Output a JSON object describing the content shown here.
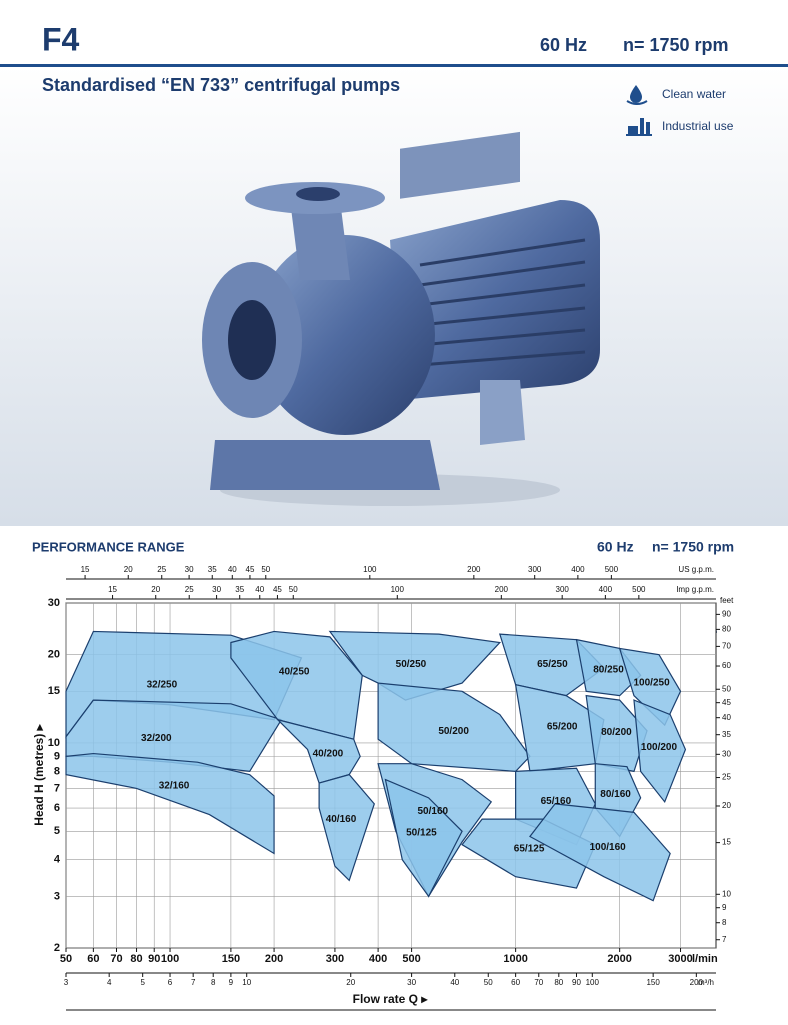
{
  "header": {
    "model": "F4",
    "frequency": "60 Hz",
    "speed": "n= 1750 rpm",
    "subtitle": "Standardised “EN 733” centrifugal pumps",
    "features": [
      "Clean water",
      "Industrial use"
    ]
  },
  "section": {
    "title": "PERFORMANCE RANGE",
    "frequency": "60 Hz",
    "speed": "n= 1750 rpm"
  },
  "chart_data": {
    "type": "area",
    "badge": "F4",
    "xlabel": "Flow rate Q ▸",
    "ylabel": "Head H (metres) ▸",
    "xscale": "log",
    "yscale": "log",
    "grid": true,
    "color": "#8cc4ea",
    "xlim": [
      50,
      3800
    ],
    "x_unit": "l/min",
    "xticks": [
      50,
      60,
      70,
      80,
      90,
      100,
      150,
      200,
      300,
      400,
      500,
      1000,
      2000,
      3000
    ],
    "ylim": [
      2,
      30
    ],
    "yticks": [
      2,
      3,
      4,
      5,
      6,
      7,
      8,
      9,
      10,
      15,
      20,
      30
    ],
    "y2lim": [
      6.56,
      98.4
    ],
    "y2_unit": "feet",
    "y2ticks": [
      7,
      8,
      9,
      10,
      15,
      20,
      25,
      30,
      35,
      40,
      45,
      50,
      60,
      70,
      80,
      90
    ],
    "top_axes": [
      {
        "unit": "US g.p.m.",
        "lim": [
          13.21,
          1004
        ],
        "ticks": [
          15,
          20,
          25,
          30,
          35,
          40,
          45,
          50,
          100,
          200,
          300,
          400,
          500
        ]
      },
      {
        "unit": "Imp g.p.m.",
        "lim": [
          11.0,
          836
        ],
        "ticks": [
          15,
          20,
          25,
          30,
          35,
          40,
          45,
          50,
          100,
          200,
          300,
          400,
          500
        ]
      }
    ],
    "bottom_axis2": {
      "unit": "m³/h",
      "lim": [
        3,
        228
      ],
      "ticks": [
        3,
        4,
        5,
        6,
        7,
        8,
        9,
        10,
        20,
        30,
        40,
        50,
        60,
        70,
        80,
        90,
        100,
        150,
        200
      ]
    },
    "series": [
      {
        "name": "32/250",
        "x": [
          50,
          60,
          150,
          240,
          200,
          100,
          60,
          50
        ],
        "values": [
          15,
          24,
          23.3,
          19.5,
          12,
          13.5,
          14,
          10.5
        ]
      },
      {
        "name": "32/200",
        "x": [
          50,
          60,
          150,
          210,
          170,
          100,
          60,
          50
        ],
        "values": [
          10.5,
          14,
          13.6,
          12,
          8,
          8.6,
          9,
          9
        ]
      },
      {
        "name": "32/160",
        "x": [
          50,
          60,
          120,
          170,
          200,
          200,
          130,
          80,
          50
        ],
        "values": [
          9,
          9.2,
          8.6,
          7.8,
          6.6,
          4.2,
          5.7,
          7,
          7.8
        ]
      },
      {
        "name": "40/250",
        "x": [
          150,
          200,
          290,
          360,
          340,
          205,
          150
        ],
        "values": [
          22,
          24,
          23,
          17,
          10.3,
          12,
          19.5
        ]
      },
      {
        "name": "40/200",
        "x": [
          205,
          340,
          355,
          330,
          270,
          250
        ],
        "values": [
          12,
          10.3,
          9,
          7.8,
          7.3,
          9.5
        ]
      },
      {
        "name": "40/160",
        "x": [
          270,
          330,
          390,
          330,
          300,
          270
        ],
        "values": [
          7.3,
          7.8,
          6.2,
          3.4,
          3.8,
          6
        ]
      },
      {
        "name": "50/250",
        "x": [
          290,
          600,
          900,
          700,
          480,
          400,
          360
        ],
        "values": [
          24,
          23.5,
          22,
          16,
          14,
          16,
          17
        ]
      },
      {
        "name": "50/200",
        "x": [
          400,
          700,
          900,
          1100,
          1000,
          500,
          400
        ],
        "values": [
          16,
          15,
          12.5,
          9,
          8,
          8.5,
          10.3
        ]
      },
      {
        "name": "50/160",
        "x": [
          400,
          500,
          700,
          850,
          700,
          560,
          450
        ],
        "values": [
          8.5,
          8.5,
          7.5,
          6.3,
          4.6,
          3,
          5
        ]
      },
      {
        "name": "50/125",
        "x": [
          420,
          560,
          700,
          560,
          470
        ],
        "values": [
          7.5,
          6.5,
          5,
          3,
          4
        ]
      },
      {
        "name": "65/250",
        "x": [
          900,
          1500,
          1800,
          1400,
          1000
        ],
        "values": [
          23.5,
          22.5,
          18,
          14.5,
          15.8
        ]
      },
      {
        "name": "65/200",
        "x": [
          1000,
          1400,
          1800,
          1700,
          1100
        ],
        "values": [
          15.8,
          14.5,
          12,
          8.5,
          8
        ]
      },
      {
        "name": "65/160",
        "x": [
          1000,
          1500,
          1700,
          1500,
          1000
        ],
        "values": [
          8,
          8.2,
          6.2,
          4.5,
          5.5
        ]
      },
      {
        "name": "65/125",
        "x": [
          800,
          1200,
          1700,
          1500,
          1000,
          700
        ],
        "values": [
          5.5,
          5.5,
          4.5,
          3.2,
          3.5,
          4.5
        ]
      },
      {
        "name": "80/250",
        "x": [
          1500,
          2000,
          2300,
          2000,
          1600
        ],
        "values": [
          22.5,
          21,
          17,
          14.5,
          15
        ]
      },
      {
        "name": "80/200",
        "x": [
          1600,
          2000,
          2400,
          2200,
          1700
        ],
        "values": [
          14.5,
          14,
          11,
          8,
          8.5
        ]
      },
      {
        "name": "80/160",
        "x": [
          1700,
          2100,
          2300,
          2000,
          1700
        ],
        "values": [
          8.5,
          8.3,
          6.5,
          4.8,
          6
        ]
      },
      {
        "name": "100/250",
        "x": [
          2000,
          2600,
          3000,
          2700,
          2200
        ],
        "values": [
          21,
          20,
          15,
          11.5,
          14.5
        ]
      },
      {
        "name": "100/200",
        "x": [
          2200,
          2800,
          3100,
          2700,
          2300
        ],
        "values": [
          14,
          12.5,
          9.5,
          6.3,
          8
        ]
      },
      {
        "name": "100/160",
        "x": [
          1300,
          2200,
          2800,
          2500,
          1800,
          1100
        ],
        "values": [
          6.2,
          5.8,
          4.2,
          2.9,
          3.5,
          4.8
        ]
      }
    ]
  }
}
